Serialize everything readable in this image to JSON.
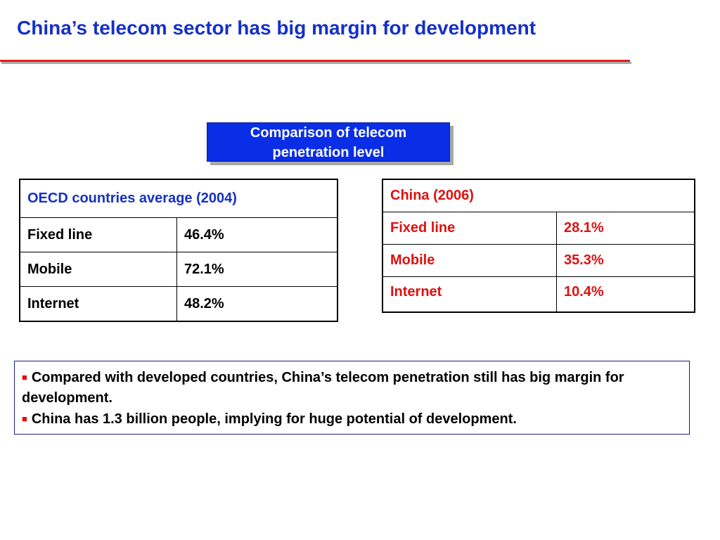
{
  "title": "China’s telecom sector has big margin for development",
  "label_box": {
    "line1": "Comparison of telecom",
    "line2": "penetration level"
  },
  "oecd_table": {
    "header": "OECD countries average (2004)",
    "rows": [
      {
        "label": "Fixed line",
        "value": "46.4%"
      },
      {
        "label": "Mobile",
        "value": "72.1%"
      },
      {
        "label": "Internet",
        "value": "48.2%"
      }
    ]
  },
  "china_table": {
    "header": "China (2006)",
    "rows": [
      {
        "label": "Fixed line",
        "value": "28.1%"
      },
      {
        "label": "Mobile",
        "value": "35.3%"
      },
      {
        "label": "Internet",
        "value": "10.4%"
      }
    ]
  },
  "notes": {
    "bullet_icon": "square-bullet-icon",
    "bullet_glyph": "■",
    "items": [
      "Compared with developed countries, China’s telecom penetration still has big margin for development.",
      "China has 1.3 billion people, implying for huge potential of development."
    ]
  },
  "colors": {
    "title_blue": "#1530c8",
    "label_box_blue": "#0a2ee6",
    "accent_red": "#e01010",
    "rule_red": "#e02020"
  }
}
